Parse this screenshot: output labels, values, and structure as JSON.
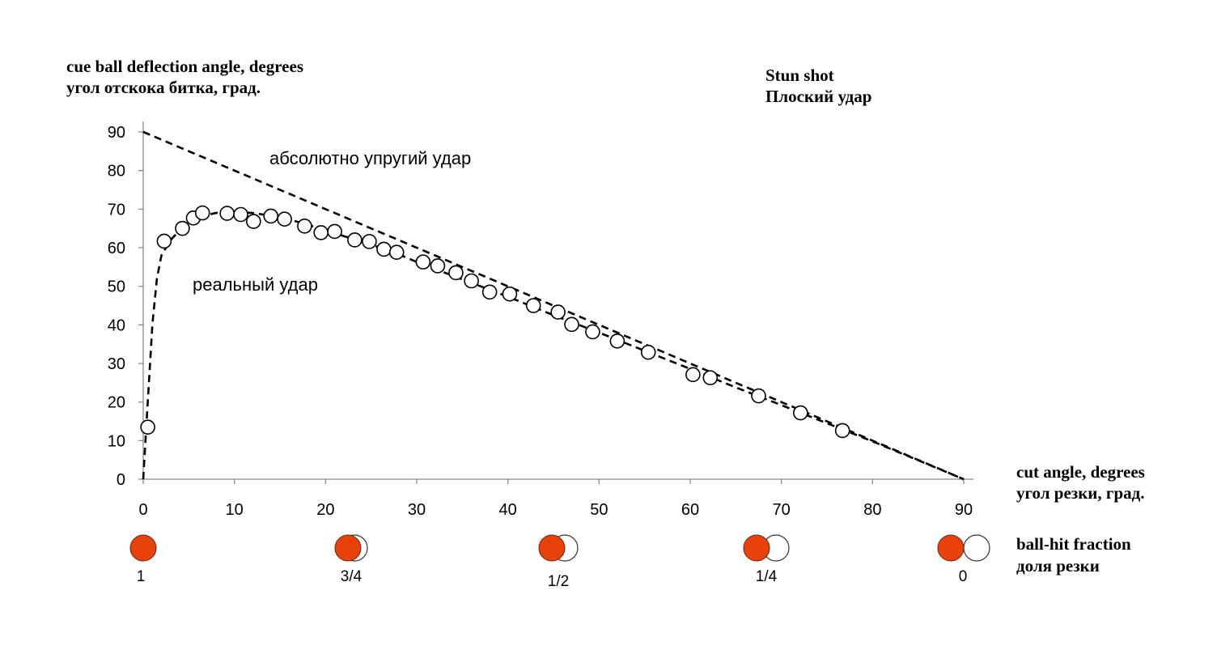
{
  "chart_data": {
    "type": "scatter",
    "title": "Stun shot",
    "title_ru": "Плоский удар",
    "ylabel": "cue ball deflection angle, degrees",
    "ylabel_ru": "угол отскока битка, град.",
    "xlabel": "cut angle, degrees",
    "xlabel_ru": "угол резки, град.",
    "xlim": [
      0,
      90
    ],
    "ylim": [
      0,
      90
    ],
    "x_ticks": [
      "0",
      "10",
      "20",
      "30",
      "40",
      "50",
      "60",
      "70",
      "80",
      "90"
    ],
    "y_ticks": [
      "0",
      "10",
      "20",
      "30",
      "40",
      "50",
      "60",
      "70",
      "80",
      "90"
    ],
    "grid": false,
    "annotations": {
      "elastic": "абсолютно упругий удар",
      "real": "реальный удар"
    },
    "series": [
      {
        "style": "dashed-line",
        "x": [
          0,
          90
        ],
        "y": [
          90,
          0
        ]
      },
      {
        "style": "dashed-line",
        "x": [
          0,
          0.5,
          1,
          1.5,
          2,
          3,
          4,
          5,
          6,
          7,
          8,
          10,
          12,
          14,
          16,
          18,
          20,
          22,
          24,
          26,
          28,
          30,
          35,
          40,
          45,
          50,
          55,
          60,
          65,
          70,
          75,
          80,
          85,
          90
        ],
        "y": [
          0,
          20,
          40,
          52,
          58,
          62,
          64.5,
          66.5,
          67.8,
          68.5,
          69,
          69.3,
          69,
          68.3,
          67.3,
          66,
          64.5,
          63,
          61.5,
          60,
          58.3,
          56.3,
          51.8,
          47.3,
          42.5,
          38,
          33.3,
          28.6,
          23.8,
          19.2,
          14.5,
          9.8,
          4.9,
          0
        ]
      },
      {
        "style": "open-circles",
        "x": [
          0.5,
          2.3,
          4.3,
          5.5,
          6.5,
          9.2,
          10.7,
          12.1,
          14.0,
          15.5,
          17.7,
          19.5,
          21.0,
          23.2,
          24.8,
          26.4,
          27.8,
          30.7,
          32.3,
          34.3,
          36.0,
          38.0,
          40.2,
          42.8,
          45.5,
          47.0,
          49.3,
          52.0,
          55.4,
          60.3,
          62.2,
          67.5,
          72.1,
          76.7
        ],
        "y": [
          13.5,
          61.7,
          65,
          67.7,
          69,
          68.9,
          68.6,
          66.8,
          68.2,
          67.4,
          65.6,
          63.9,
          64.2,
          62,
          61.6,
          59.6,
          58.8,
          56.3,
          55.3,
          53.5,
          51.4,
          48.5,
          48,
          45,
          43.3,
          40.1,
          38.2,
          35.8,
          32.9,
          27.1,
          26.3,
          21.6,
          17.2,
          12.6
        ]
      }
    ],
    "ball_hit_fraction": {
      "label": "ball-hit fraction",
      "label_ru": "доля резки",
      "items": [
        {
          "label": "1",
          "overlap": 1.0
        },
        {
          "label": "3/4",
          "overlap": 0.75
        },
        {
          "label": "1/2",
          "overlap": 0.5
        },
        {
          "label": "1/4",
          "overlap": 0.25
        },
        {
          "label": "0",
          "overlap": 0.0
        }
      ]
    },
    "colors": {
      "object_ball": "#e8420a",
      "ink": "#000000"
    }
  }
}
